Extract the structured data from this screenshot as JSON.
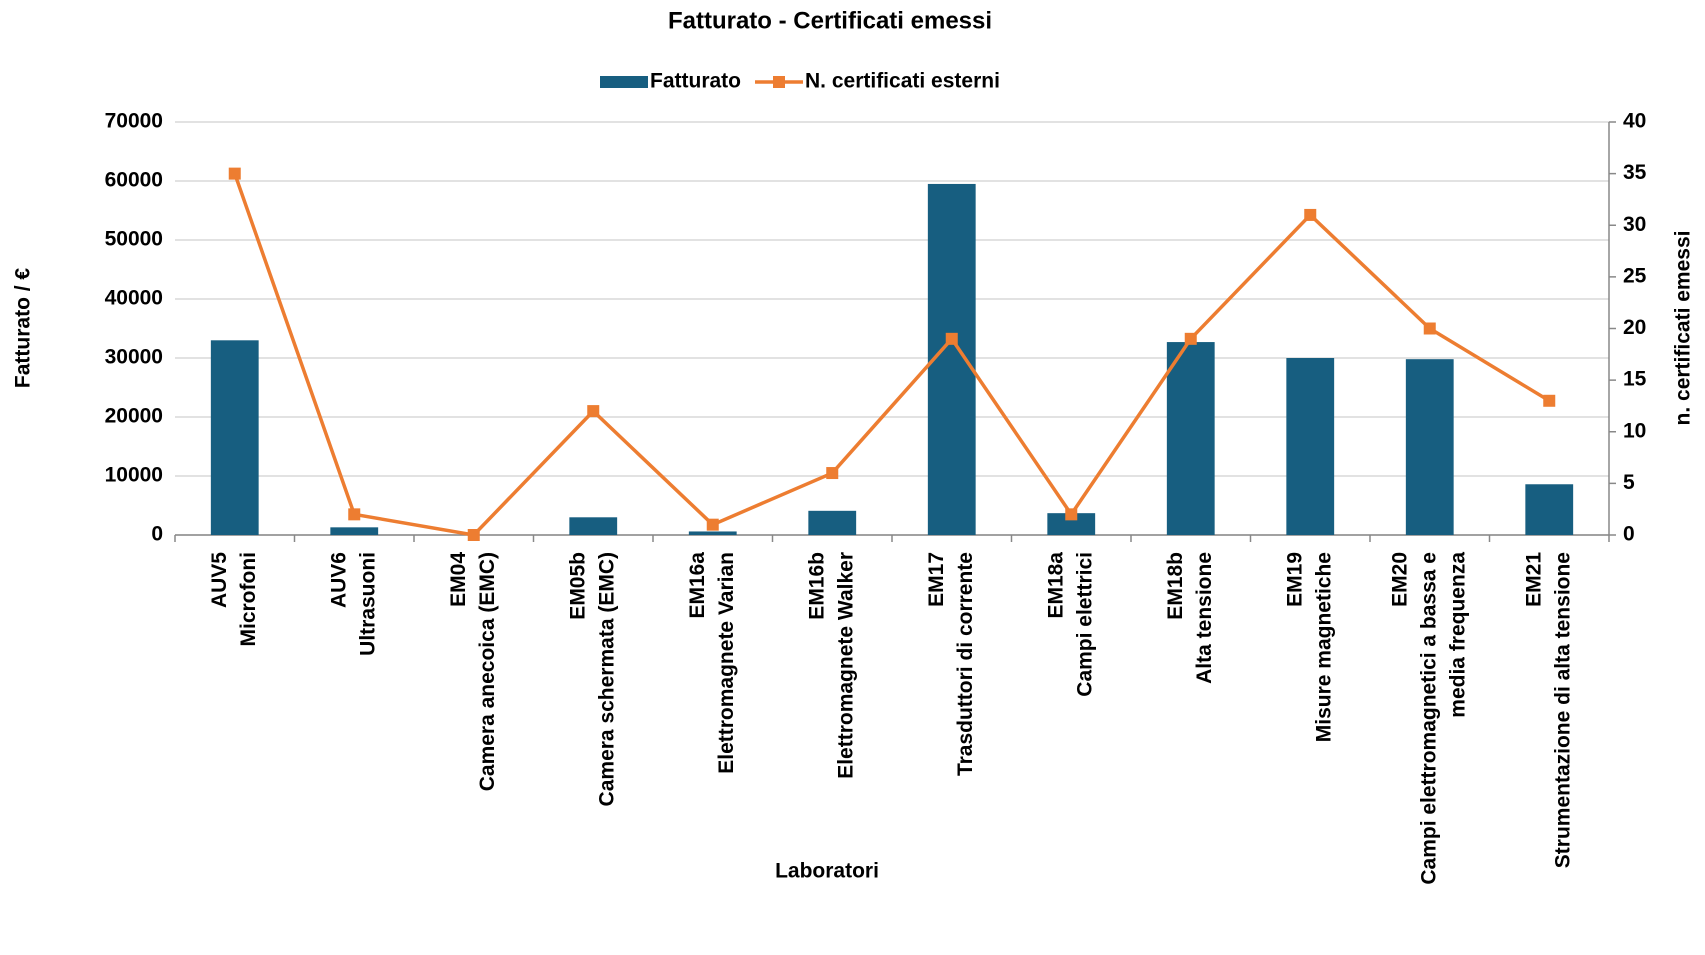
{
  "chart_data": {
    "type": "bar_line",
    "title": "Fatturato - Certificati emessi",
    "x_label": "Laboratori",
    "y_label": "Fatturato / €",
    "y2_label": "n. certificati emessi",
    "categories": [
      [
        "AUV5",
        "Microfoni"
      ],
      [
        "AUV6",
        "Ultrasuoni"
      ],
      [
        "EM04",
        "Camera anecoica (EMC)"
      ],
      [
        "EM05b",
        "Camera schermata (EMC)"
      ],
      [
        "EM16a",
        "Elettromagnete Varian"
      ],
      [
        "EM16b",
        "Elettromagnete Walker"
      ],
      [
        "EM17",
        "Trasduttori di corrente"
      ],
      [
        "EM18a",
        "Campi elettrici"
      ],
      [
        "EM18b",
        "Alta tensione"
      ],
      [
        "EM19",
        "Misure magnetiche"
      ],
      [
        "EM20",
        "Campi elettromagnetici a bassa e",
        "media frequenza"
      ],
      [
        "EM21",
        "Strumentazione di alta tensione"
      ]
    ],
    "series": [
      {
        "name": "Fatturato",
        "type": "bar",
        "color": "#175e80",
        "values": [
          33000,
          1300,
          0,
          3000,
          600,
          4100,
          59500,
          3700,
          32700,
          30000,
          29800,
          8600
        ]
      },
      {
        "name": "N. certificati esterni",
        "type": "line",
        "axis": "y2",
        "color": "#ed7d31",
        "values": [
          35,
          2,
          0,
          12,
          1,
          6,
          19,
          2,
          19,
          31,
          20,
          13
        ]
      }
    ],
    "ylim": [
      0,
      70000
    ],
    "yticks": [
      0,
      10000,
      20000,
      30000,
      40000,
      50000,
      60000,
      70000
    ],
    "y2lim": [
      0,
      40
    ],
    "y2ticks": [
      0,
      5,
      10,
      15,
      20,
      25,
      30,
      35,
      40
    ],
    "grid": true,
    "legend": "top"
  }
}
